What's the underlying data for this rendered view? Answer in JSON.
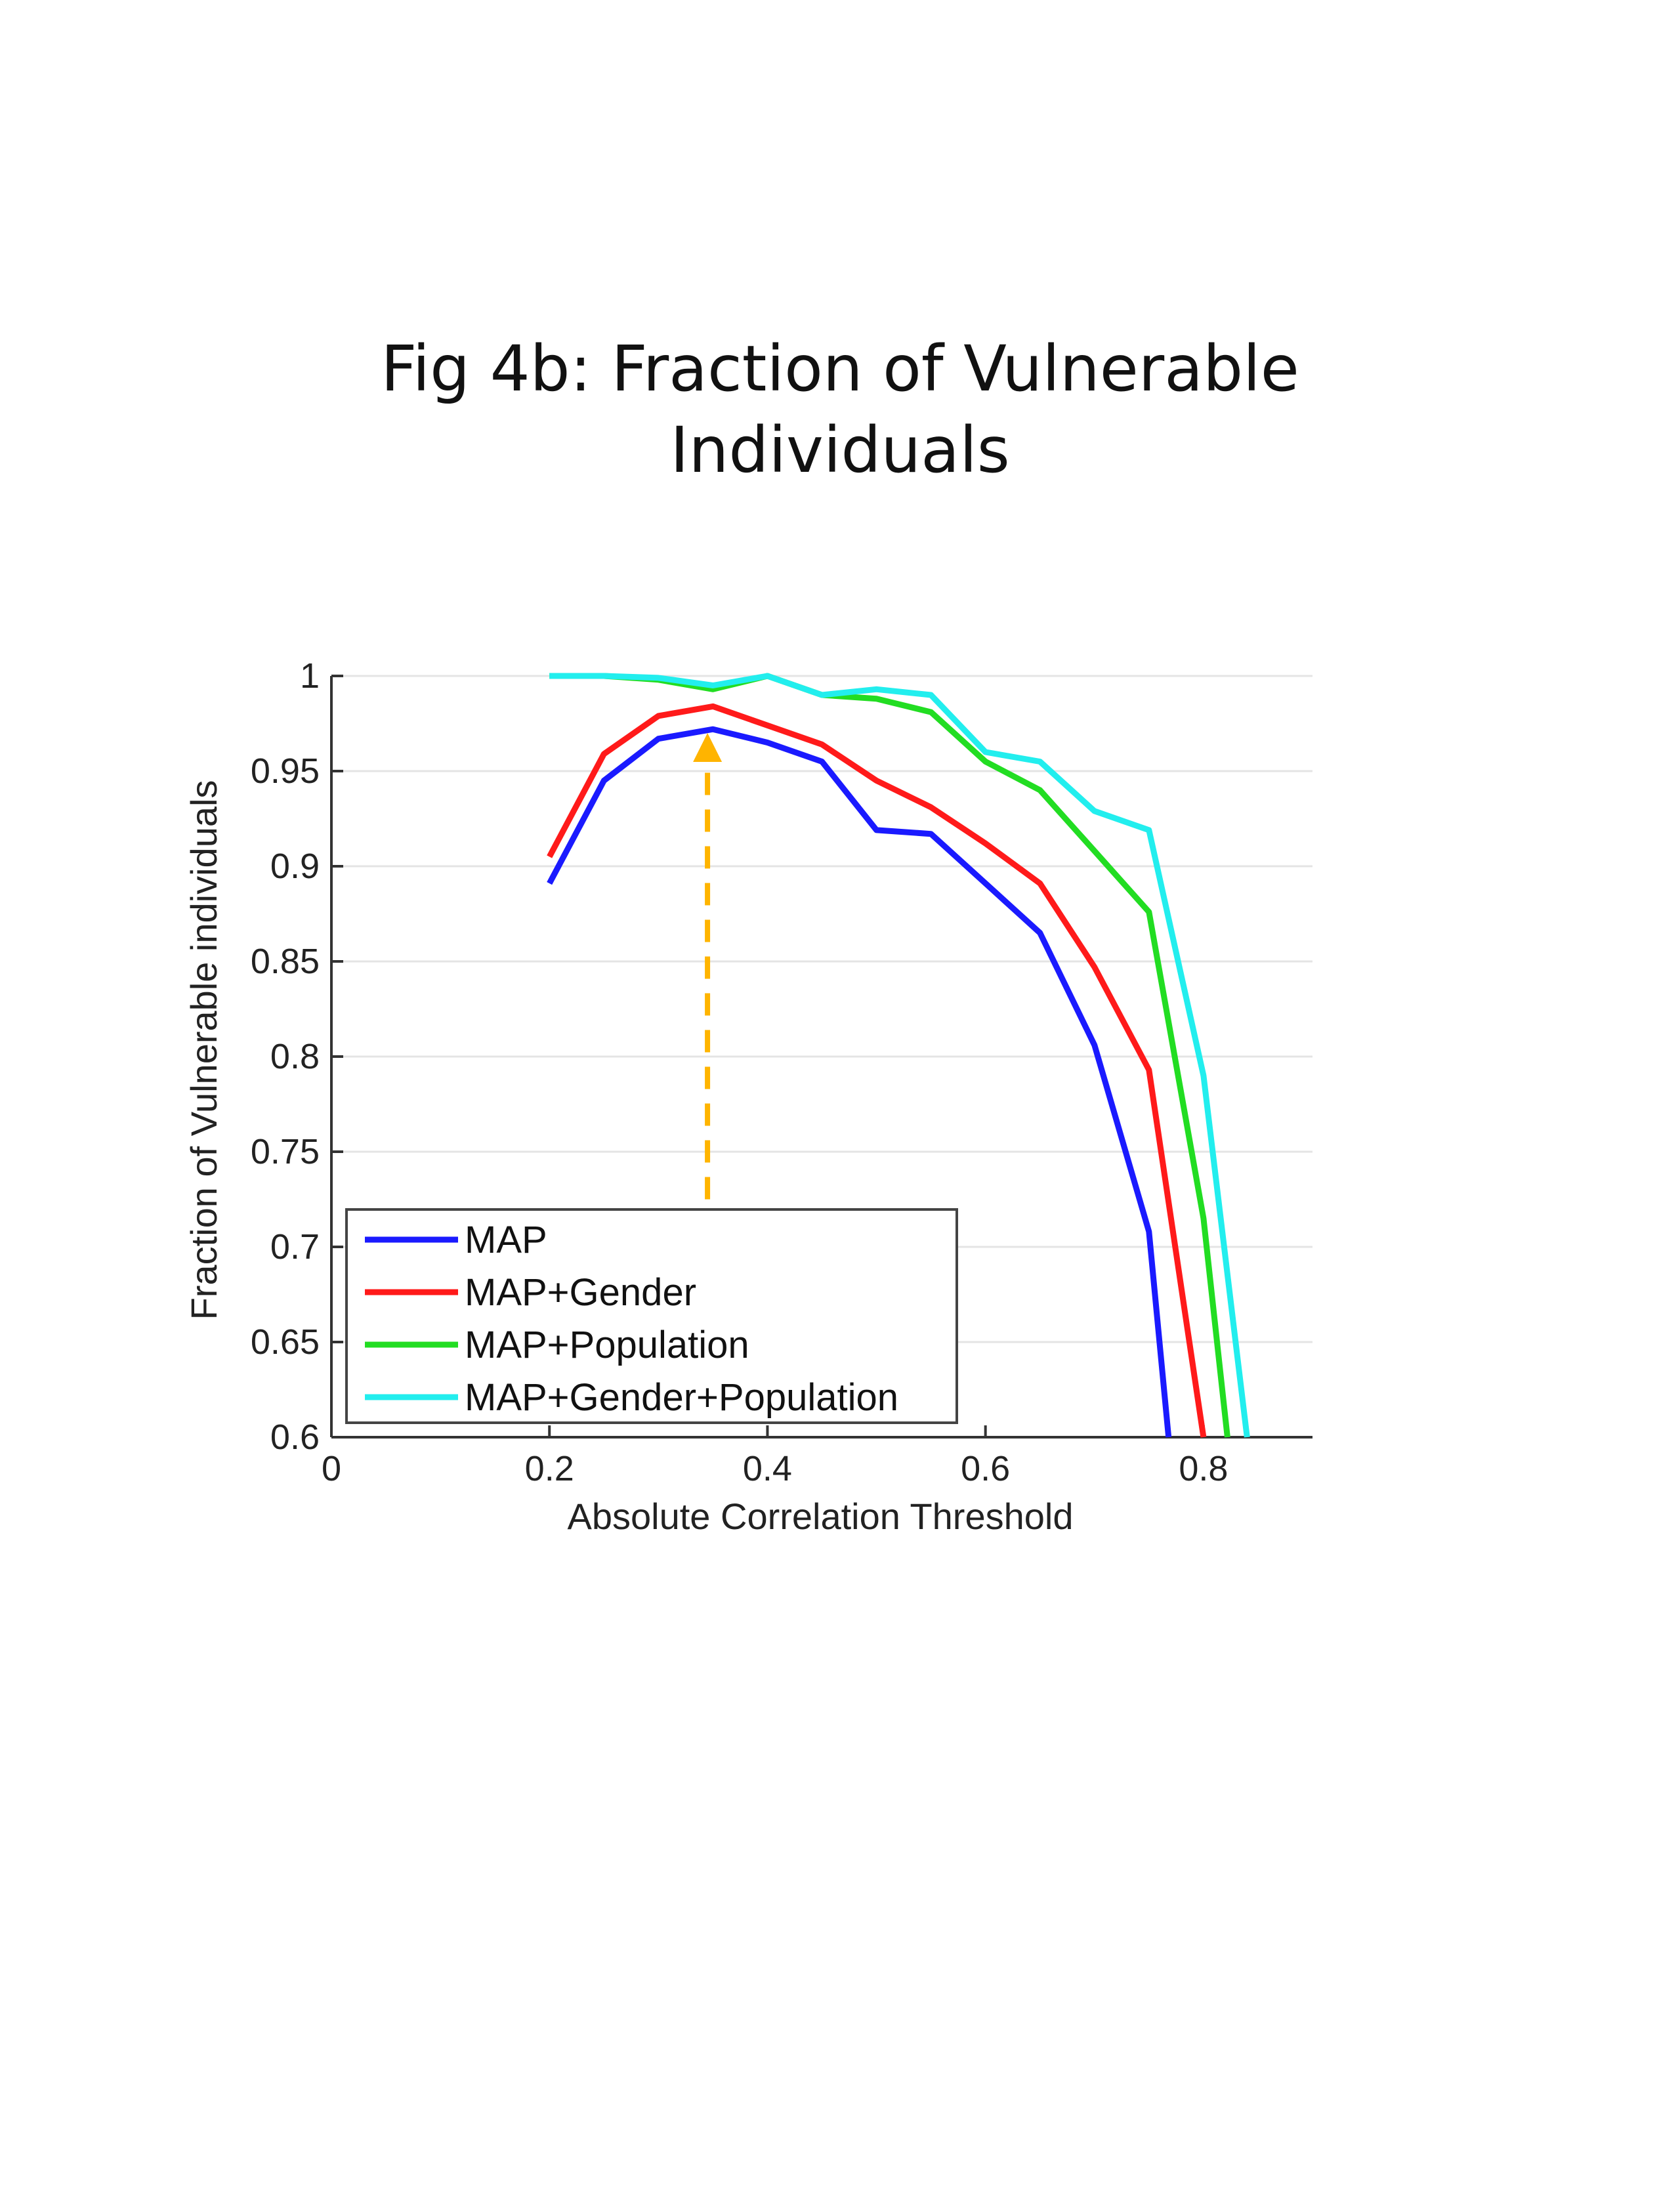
{
  "title_line1": "Fig 4b: Fraction of Vulnerable",
  "title_line2": "Individuals",
  "chart_data": {
    "type": "line",
    "xlabel": "Absolute Correlation Threshold",
    "ylabel": "Fraction of Vulnerable individuals",
    "xlim": [
      0,
      0.9
    ],
    "ylim": [
      0.6,
      1
    ],
    "xticks": [
      0,
      0.2,
      0.4,
      0.6,
      0.8
    ],
    "xtick_labels": [
      "0",
      "0.2",
      "0.4",
      "0.6",
      "0.8"
    ],
    "yticks": [
      0.6,
      0.65,
      0.7,
      0.75,
      0.8,
      0.85,
      0.9,
      0.95,
      1
    ],
    "ytick_labels": [
      "0.6",
      "0.65",
      "0.7",
      "0.75",
      "0.8",
      "0.85",
      "0.9",
      "0.95",
      "1"
    ],
    "grid": true,
    "legend_position": "bottom-left",
    "series": [
      {
        "name": "MAP",
        "color": "#1a1aff",
        "x": [
          0.2,
          0.25,
          0.3,
          0.35,
          0.4,
          0.45,
          0.5,
          0.55,
          0.6,
          0.65,
          0.7,
          0.75,
          0.768
        ],
        "y": [
          0.891,
          0.945,
          0.967,
          0.972,
          0.965,
          0.955,
          0.919,
          0.917,
          0.891,
          0.865,
          0.806,
          0.708,
          0.6
        ]
      },
      {
        "name": "MAP+Gender",
        "color": "#ff1a1a",
        "x": [
          0.2,
          0.25,
          0.3,
          0.35,
          0.4,
          0.45,
          0.5,
          0.55,
          0.6,
          0.65,
          0.7,
          0.75,
          0.8
        ],
        "y": [
          0.905,
          0.959,
          0.979,
          0.984,
          0.974,
          0.964,
          0.945,
          0.931,
          0.912,
          0.891,
          0.847,
          0.793,
          0.6
        ]
      },
      {
        "name": "MAP+Population",
        "color": "#22dd22",
        "x": [
          0.2,
          0.25,
          0.3,
          0.35,
          0.4,
          0.45,
          0.5,
          0.55,
          0.6,
          0.65,
          0.7,
          0.75,
          0.8,
          0.822
        ],
        "y": [
          1.0,
          1.0,
          0.998,
          0.993,
          1.0,
          0.99,
          0.988,
          0.981,
          0.955,
          0.94,
          0.908,
          0.876,
          0.715,
          0.6
        ]
      },
      {
        "name": "MAP+Gender+Population",
        "color": "#22eeee",
        "x": [
          0.2,
          0.25,
          0.3,
          0.35,
          0.4,
          0.45,
          0.5,
          0.55,
          0.6,
          0.65,
          0.7,
          0.75,
          0.8,
          0.84
        ],
        "y": [
          1.0,
          1.0,
          0.999,
          0.995,
          1.0,
          0.99,
          0.993,
          0.99,
          0.96,
          0.955,
          0.929,
          0.919,
          0.79,
          0.6
        ]
      }
    ],
    "annotations": [
      {
        "type": "dashed-arrow",
        "color": "#ffb400",
        "x": 0.345,
        "y_from": 0.725,
        "y_to": 0.97
      }
    ]
  }
}
